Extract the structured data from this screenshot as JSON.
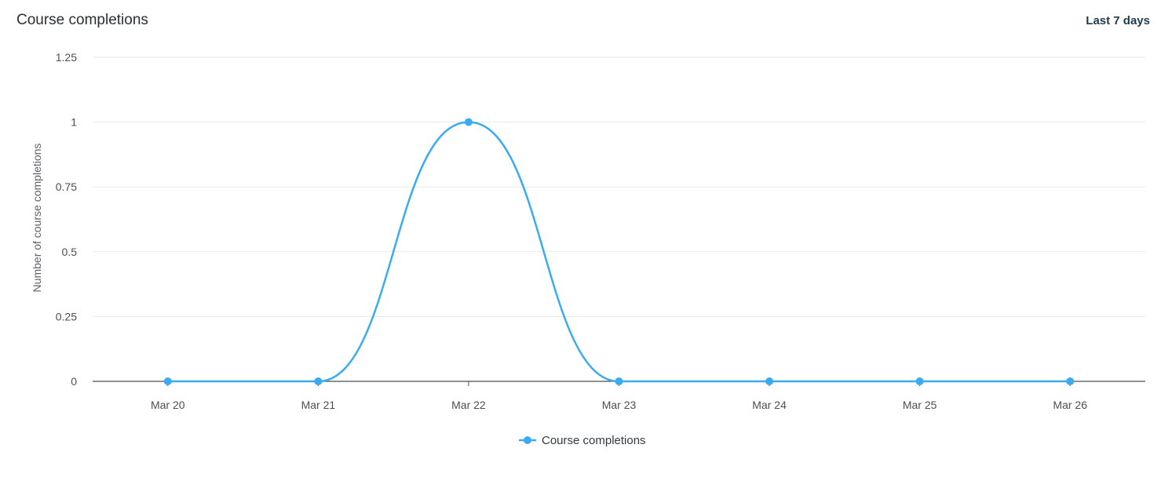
{
  "header": {
    "title": "Course completions",
    "range_label": "Last 7 days"
  },
  "chart_data": {
    "type": "line",
    "title": "Course completions",
    "xlabel": "",
    "ylabel": "Number of course completions",
    "categories": [
      "Mar 20",
      "Mar 21",
      "Mar 22",
      "Mar 23",
      "Mar 24",
      "Mar 25",
      "Mar 26"
    ],
    "series": [
      {
        "name": "Course completions",
        "values": [
          0,
          0,
          1,
          0,
          0,
          0,
          0
        ],
        "color": "#3aabf0"
      }
    ],
    "ylim": [
      0,
      1.25
    ],
    "yticks": [
      "0",
      "0.25",
      "0.5",
      "0.75",
      "1",
      "1.25"
    ],
    "grid": true,
    "smooth": true,
    "legend": "bottom-center"
  }
}
